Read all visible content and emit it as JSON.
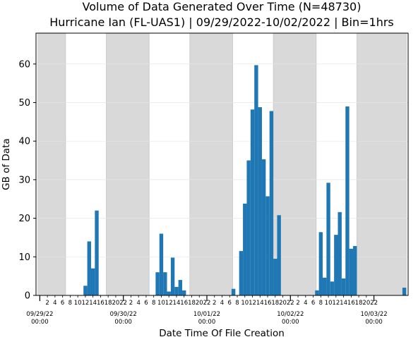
{
  "chart_data": {
    "type": "bar",
    "title": "Volume of Data Generated Over Time (N=48730)",
    "subtitle": "Hurricane Ian (FL-UAS1) | 09/29/2022-10/02/2022 | Bin=1hrs",
    "xlabel": "Date Time Of File Creation",
    "ylabel": "GB of Data",
    "ylim": [
      0,
      68
    ],
    "yticks": [
      0,
      10,
      20,
      30,
      40,
      50,
      60
    ],
    "xlim_hours": [
      -1,
      97
    ],
    "bar_color": "#1f77b4",
    "shade_color": "#d9d9d9",
    "night_bands_hours": [
      [
        -0.5,
        6.8
      ],
      [
        17.5,
        28.8
      ],
      [
        39.5,
        50.8
      ],
      [
        61.5,
        72.8
      ],
      [
        83.5,
        96.5
      ]
    ],
    "date_ticks": [
      {
        "hour": 0,
        "line1": "09/29/22",
        "line2": "00:00"
      },
      {
        "hour": 22,
        "line1": "09/30/22",
        "line2": "00:00"
      },
      {
        "hour": 44,
        "line1": "10/01/22",
        "line2": "00:00"
      },
      {
        "hour": 66,
        "line1": "10/02/22",
        "line2": "00:00"
      },
      {
        "hour": 88,
        "line1": "10/03/22",
        "line2": "00:00"
      }
    ],
    "hour_ticks": [
      {
        "hour": 2,
        "label": "2"
      },
      {
        "hour": 4,
        "label": "4"
      },
      {
        "hour": 6,
        "label": "6"
      },
      {
        "hour": 8,
        "label": "8"
      },
      {
        "hour": 10,
        "label": "10"
      },
      {
        "hour": 12,
        "label": "12"
      },
      {
        "hour": 14,
        "label": "14"
      },
      {
        "hour": 16,
        "label": "16"
      },
      {
        "hour": 18,
        "label": "18"
      },
      {
        "hour": 20,
        "label": "20"
      },
      {
        "hour": 22,
        "label": "22"
      },
      {
        "hour": 24,
        "label": "2"
      },
      {
        "hour": 26,
        "label": "4"
      },
      {
        "hour": 28,
        "label": "6"
      },
      {
        "hour": 30,
        "label": "8"
      },
      {
        "hour": 32,
        "label": "10"
      },
      {
        "hour": 34,
        "label": "12"
      },
      {
        "hour": 36,
        "label": "14"
      },
      {
        "hour": 38,
        "label": "16"
      },
      {
        "hour": 40,
        "label": "18"
      },
      {
        "hour": 42,
        "label": "20"
      },
      {
        "hour": 44,
        "label": "22"
      },
      {
        "hour": 46,
        "label": "2"
      },
      {
        "hour": 48,
        "label": "4"
      },
      {
        "hour": 50,
        "label": "6"
      },
      {
        "hour": 52,
        "label": "8"
      },
      {
        "hour": 54,
        "label": "10"
      },
      {
        "hour": 56,
        "label": "12"
      },
      {
        "hour": 58,
        "label": "14"
      },
      {
        "hour": 60,
        "label": "16"
      },
      {
        "hour": 62,
        "label": "18"
      },
      {
        "hour": 64,
        "label": "20"
      },
      {
        "hour": 66,
        "label": "22"
      },
      {
        "hour": 68,
        "label": "2"
      },
      {
        "hour": 70,
        "label": "4"
      },
      {
        "hour": 72,
        "label": "6"
      },
      {
        "hour": 74,
        "label": "8"
      },
      {
        "hour": 76,
        "label": "10"
      },
      {
        "hour": 78,
        "label": "12"
      },
      {
        "hour": 80,
        "label": "14"
      },
      {
        "hour": 82,
        "label": "16"
      },
      {
        "hour": 84,
        "label": "18"
      },
      {
        "hour": 86,
        "label": "20"
      },
      {
        "hour": 88,
        "label": "22"
      }
    ],
    "bars": [
      {
        "hour": 12,
        "value": 2.5
      },
      {
        "hour": 13,
        "value": 14.0
      },
      {
        "hour": 14,
        "value": 7.0
      },
      {
        "hour": 15,
        "value": 22.0
      },
      {
        "hour": 31,
        "value": 6.0
      },
      {
        "hour": 32,
        "value": 16.0
      },
      {
        "hour": 33,
        "value": 6.0
      },
      {
        "hour": 34,
        "value": 1.0
      },
      {
        "hour": 35,
        "value": 9.8
      },
      {
        "hour": 36,
        "value": 2.2
      },
      {
        "hour": 37,
        "value": 4.0
      },
      {
        "hour": 38,
        "value": 1.3
      },
      {
        "hour": 51,
        "value": 1.7
      },
      {
        "hour": 53,
        "value": 11.5
      },
      {
        "hour": 54,
        "value": 23.8
      },
      {
        "hour": 55,
        "value": 35.0
      },
      {
        "hour": 56,
        "value": 48.2
      },
      {
        "hour": 57,
        "value": 59.7
      },
      {
        "hour": 58,
        "value": 48.8
      },
      {
        "hour": 59,
        "value": 35.3
      },
      {
        "hour": 60,
        "value": 25.7
      },
      {
        "hour": 61,
        "value": 47.8
      },
      {
        "hour": 62,
        "value": 9.5
      },
      {
        "hour": 63,
        "value": 20.8
      },
      {
        "hour": 73,
        "value": 1.3
      },
      {
        "hour": 74,
        "value": 16.4
      },
      {
        "hour": 75,
        "value": 4.6
      },
      {
        "hour": 76,
        "value": 29.2
      },
      {
        "hour": 77,
        "value": 3.6
      },
      {
        "hour": 78,
        "value": 15.7
      },
      {
        "hour": 79,
        "value": 21.6
      },
      {
        "hour": 80,
        "value": 4.4
      },
      {
        "hour": 81,
        "value": 49.0
      },
      {
        "hour": 82,
        "value": 12.1
      },
      {
        "hour": 83,
        "value": 12.8
      },
      {
        "hour": 96,
        "value": 2.0
      }
    ]
  }
}
